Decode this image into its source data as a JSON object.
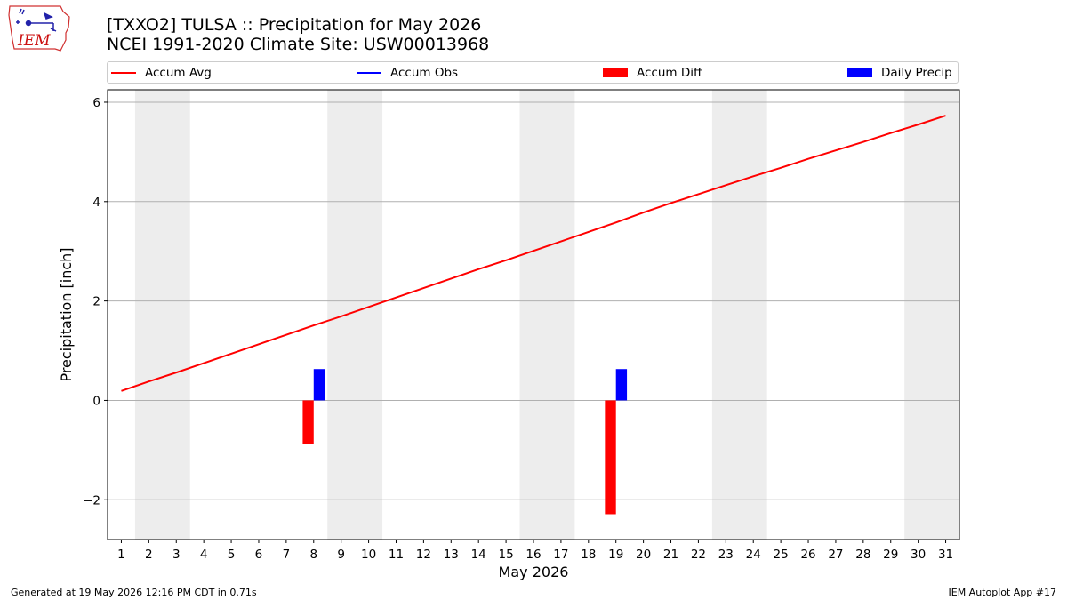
{
  "header": {
    "title_line1": "[TXXO2] TULSA :: Precipitation for May 2026",
    "title_line2": "NCEI 1991-2020 Climate Site: USW00013968"
  },
  "logo": {
    "text": "IEM",
    "color": "#cc1111"
  },
  "legend": {
    "items": [
      {
        "label": "Accum Avg",
        "kind": "line",
        "color": "#ff0000"
      },
      {
        "label": "Accum Obs",
        "kind": "line",
        "color": "#0000ff"
      },
      {
        "label": "Accum Diff",
        "kind": "patch",
        "color": "#ff0000"
      },
      {
        "label": "Daily Precip",
        "kind": "patch",
        "color": "#0000ff"
      }
    ]
  },
  "chart_data": {
    "type": "bar",
    "xlabel": "May 2026",
    "ylabel": "Precipitation [inch]",
    "xlim": [
      0.5,
      31.5
    ],
    "ylim": [
      -2.8,
      6.25
    ],
    "yticks": [
      -2,
      0,
      2,
      4,
      6
    ],
    "xticks": [
      1,
      2,
      3,
      4,
      5,
      6,
      7,
      8,
      9,
      10,
      11,
      12,
      13,
      14,
      15,
      16,
      17,
      18,
      19,
      20,
      21,
      22,
      23,
      24,
      25,
      26,
      27,
      28,
      29,
      30,
      31
    ],
    "grid": "horizontal",
    "weekend_shading": [
      [
        1.5,
        3.5
      ],
      [
        8.5,
        10.5
      ],
      [
        15.5,
        17.5
      ],
      [
        22.5,
        24.5
      ],
      [
        29.5,
        31.5
      ]
    ],
    "shade_color": "#ededed",
    "series": [
      {
        "name": "Accum Avg",
        "type": "line",
        "color": "#ff0000",
        "x": [
          1,
          2,
          3,
          4,
          5,
          6,
          7,
          8,
          9,
          10,
          11,
          12,
          13,
          14,
          15,
          16,
          17,
          18,
          19,
          20,
          21,
          22,
          23,
          24,
          25,
          26,
          27,
          28,
          29,
          30,
          31
        ],
        "values": [
          0.19,
          0.38,
          0.56,
          0.75,
          0.94,
          1.13,
          1.32,
          1.51,
          1.69,
          1.88,
          2.07,
          2.26,
          2.45,
          2.64,
          2.82,
          3.01,
          3.2,
          3.39,
          3.58,
          3.78,
          3.97,
          4.15,
          4.33,
          4.51,
          4.68,
          4.86,
          5.03,
          5.2,
          5.38,
          5.55,
          5.73
        ]
      },
      {
        "name": "Accum Diff",
        "type": "bar",
        "color": "#ff0000",
        "x": [
          8,
          19
        ],
        "values": [
          -0.87,
          -2.29
        ]
      },
      {
        "name": "Daily Precip",
        "type": "bar",
        "color": "#0000ff",
        "x": [
          8,
          19
        ],
        "values": [
          0.63,
          0.63
        ]
      }
    ]
  },
  "footer": {
    "left": "Generated at 19 May 2026 12:16 PM CDT in 0.71s",
    "right": "IEM Autoplot App #17"
  }
}
